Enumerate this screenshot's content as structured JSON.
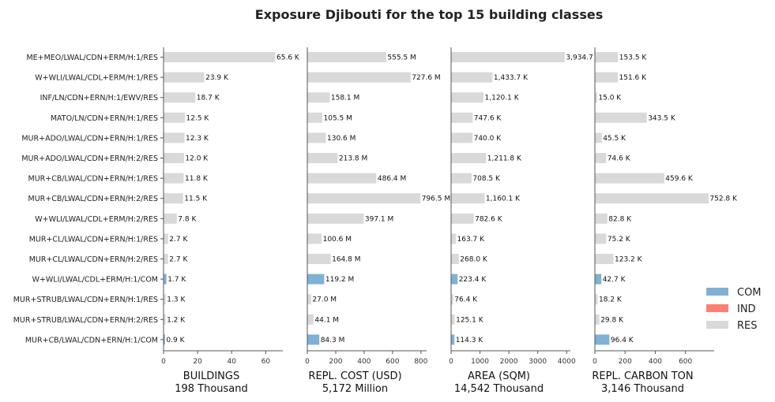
{
  "chart_data": {
    "type": "bar",
    "orientation": "horizontal",
    "stacked": false,
    "title": "Exposure Djibouti for the top 15 building classes",
    "categories": [
      "ME+MEO/LWAL/CDN+ERM/H:1/RES",
      "W+WLI/LWAL/CDL+ERM/H:1/RES",
      "INF/LN/CDN+ERN/H:1/EWV/RES",
      "MATO/LN/CDN+ERN/H:1/RES",
      "MUR+ADO/LWAL/CDN+ERN/H:1/RES",
      "MUR+ADO/LWAL/CDN+ERN/H:2/RES",
      "MUR+CB/LWAL/CDN+ERN/H:1/RES",
      "MUR+CB/LWAL/CDN+ERN/H:2/RES",
      "W+WLI/LWAL/CDL+ERM/H:2/RES",
      "MUR+CL/LWAL/CDN+ERN/H:1/RES",
      "MUR+CL/LWAL/CDN+ERN/H:2/RES",
      "W+WLI/LWAL/CDL+ERM/H:1/COM",
      "MUR+STRUB/LWAL/CDN+ERN/H:1/RES",
      "MUR+STRUB/LWAL/CDN+ERN/H:2/RES",
      "MUR+CB/LWAL/CDN+ERN/H:1/COM"
    ],
    "occupancy": [
      "RES",
      "RES",
      "RES",
      "RES",
      "RES",
      "RES",
      "RES",
      "RES",
      "RES",
      "RES",
      "RES",
      "COM",
      "RES",
      "RES",
      "COM"
    ],
    "legend": {
      "placement": "right",
      "entries": [
        {
          "label": "COM",
          "color": "#80b1d3"
        },
        {
          "label": "IND",
          "color": "#fb8072"
        },
        {
          "label": "RES",
          "color": "#d9d9d9"
        }
      ]
    },
    "panels": [
      {
        "xlabel": "BUILDINGS",
        "total": "198 Thousand",
        "xlim": [
          0,
          70
        ],
        "ticks": [
          0,
          20,
          40,
          60
        ],
        "values": [
          65.6,
          23.9,
          18.7,
          12.5,
          12.3,
          12.0,
          11.8,
          11.5,
          7.8,
          2.7,
          2.7,
          1.7,
          1.3,
          1.2,
          0.9
        ],
        "labels": [
          "65.6 K",
          "23.9 K",
          "18.7 K",
          "12.5 K",
          "12.3 K",
          "12.0 K",
          "11.8 K",
          "11.5 K",
          "7.8 K",
          "2.7 K",
          "2.7 K",
          "1.7 K",
          "1.3 K",
          "1.2 K",
          "0.9 K"
        ]
      },
      {
        "xlabel": "REPL. COST (USD)",
        "total": "5,172 Million",
        "xlim": [
          0,
          840
        ],
        "ticks": [
          0,
          200,
          400,
          600,
          800
        ],
        "values": [
          555.5,
          727.6,
          158.1,
          105.5,
          130.6,
          213.8,
          486.4,
          796.5,
          397.1,
          100.6,
          164.8,
          119.2,
          27.0,
          44.1,
          84.3
        ],
        "labels": [
          "555.5 M",
          "727.6 M",
          "158.1 M",
          "105.5 M",
          "130.6 M",
          "213.8 M",
          "486.4 M",
          "796.5 M",
          "397.1 M",
          "100.6 M",
          "164.8 M",
          "119.2 M",
          "27.0 M",
          "44.1 M",
          "84.3 M"
        ]
      },
      {
        "xlabel": "AREA (SQM)",
        "total": "14,542 Thousand",
        "xlim": [
          0,
          4130
        ],
        "ticks": [
          0,
          1000,
          2000,
          3000,
          4000
        ],
        "values": [
          3934.7,
          1433.7,
          1120.1,
          747.6,
          740.0,
          1211.8,
          708.5,
          1160.1,
          782.6,
          163.7,
          268.0,
          223.4,
          76.4,
          125.1,
          114.3
        ],
        "labels": [
          "3,934.7 K",
          "1,433.7 K",
          "1,120.1 K",
          "747.6 K",
          "740.0 K",
          "1,211.8 K",
          "708.5 K",
          "1,160.1 K",
          "782.6 K",
          "163.7 K",
          "268.0 K",
          "223.4 K",
          "76.4 K",
          "125.1 K",
          "114.3 K"
        ]
      },
      {
        "xlabel": "REPL. CARBON TON",
        "total": "3,146 Thousand",
        "xlim": [
          0,
          790
        ],
        "ticks": [
          0,
          200,
          400,
          600
        ],
        "values": [
          153.5,
          151.6,
          15.0,
          343.5,
          45.5,
          74.6,
          459.6,
          752.8,
          82.8,
          75.2,
          123.2,
          42.7,
          18.2,
          29.8,
          96.4
        ],
        "labels": [
          "153.5 K",
          "151.6 K",
          "15.0 K",
          "343.5 K",
          "45.5 K",
          "74.6 K",
          "459.6 K",
          "752.8 K",
          "82.8 K",
          "75.2 K",
          "123.2 K",
          "42.7 K",
          "18.2 K",
          "29.8 K",
          "96.4 K"
        ]
      }
    ]
  }
}
